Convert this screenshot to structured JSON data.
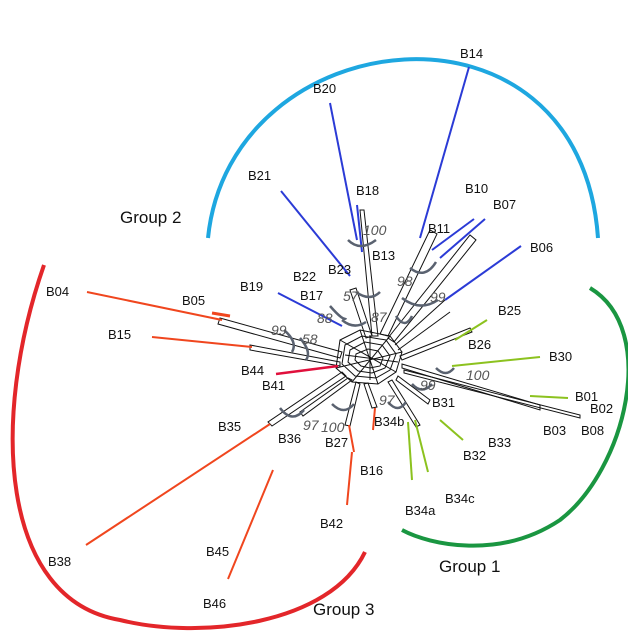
{
  "diagram": {
    "type": "phylogenetic split network",
    "groups": [
      {
        "id": "group-1",
        "label": "Group 1",
        "color": "#1a9641"
      },
      {
        "id": "group-2",
        "label": "Group 2",
        "color": "#1ea7e0"
      },
      {
        "id": "group-3",
        "label": "Group 3",
        "color": "#e3262a"
      }
    ],
    "branch_colors": {
      "group1": "#8cc21f",
      "group2": "#2b3bd6",
      "group3": "#f0461e",
      "core": "#111111",
      "support_arc": "#5a6270"
    },
    "taxa": {
      "B01": "B01",
      "B02": "B02",
      "B03": "B03",
      "B04": "B04",
      "B05": "B05",
      "B06": "B06",
      "B07": "B07",
      "B08": "B08",
      "B10": "B10",
      "B11": "B11",
      "B13": "B13",
      "B14": "B14",
      "B15": "B15",
      "B16": "B16",
      "B17": "B17",
      "B18": "B18",
      "B19": "B19",
      "B20": "B20",
      "B21": "B21",
      "B22": "B22",
      "B23": "B23",
      "B25": "B25",
      "B26": "B26",
      "B27": "B27",
      "B30": "B30",
      "B31": "B31",
      "B32": "B32",
      "B33": "B33",
      "B34a": "B34a",
      "B34b": "B34b",
      "B34c": "B34c",
      "B35": "B35",
      "B36": "B36",
      "B38": "B38",
      "B41": "B41",
      "B42": "B42",
      "B44": "B44",
      "B45": "B45",
      "B46": "B46"
    },
    "bootstrap": {
      "b100_top": "100",
      "b98": "98",
      "b99_right": "99",
      "b57": "57",
      "b88": "88",
      "b87": "87",
      "b99_left": "99",
      "b58": "58",
      "b100_right": "100",
      "b99_lower": "99",
      "b97_center": "97",
      "b97_left": "97",
      "b100_bottom": "100"
    }
  }
}
